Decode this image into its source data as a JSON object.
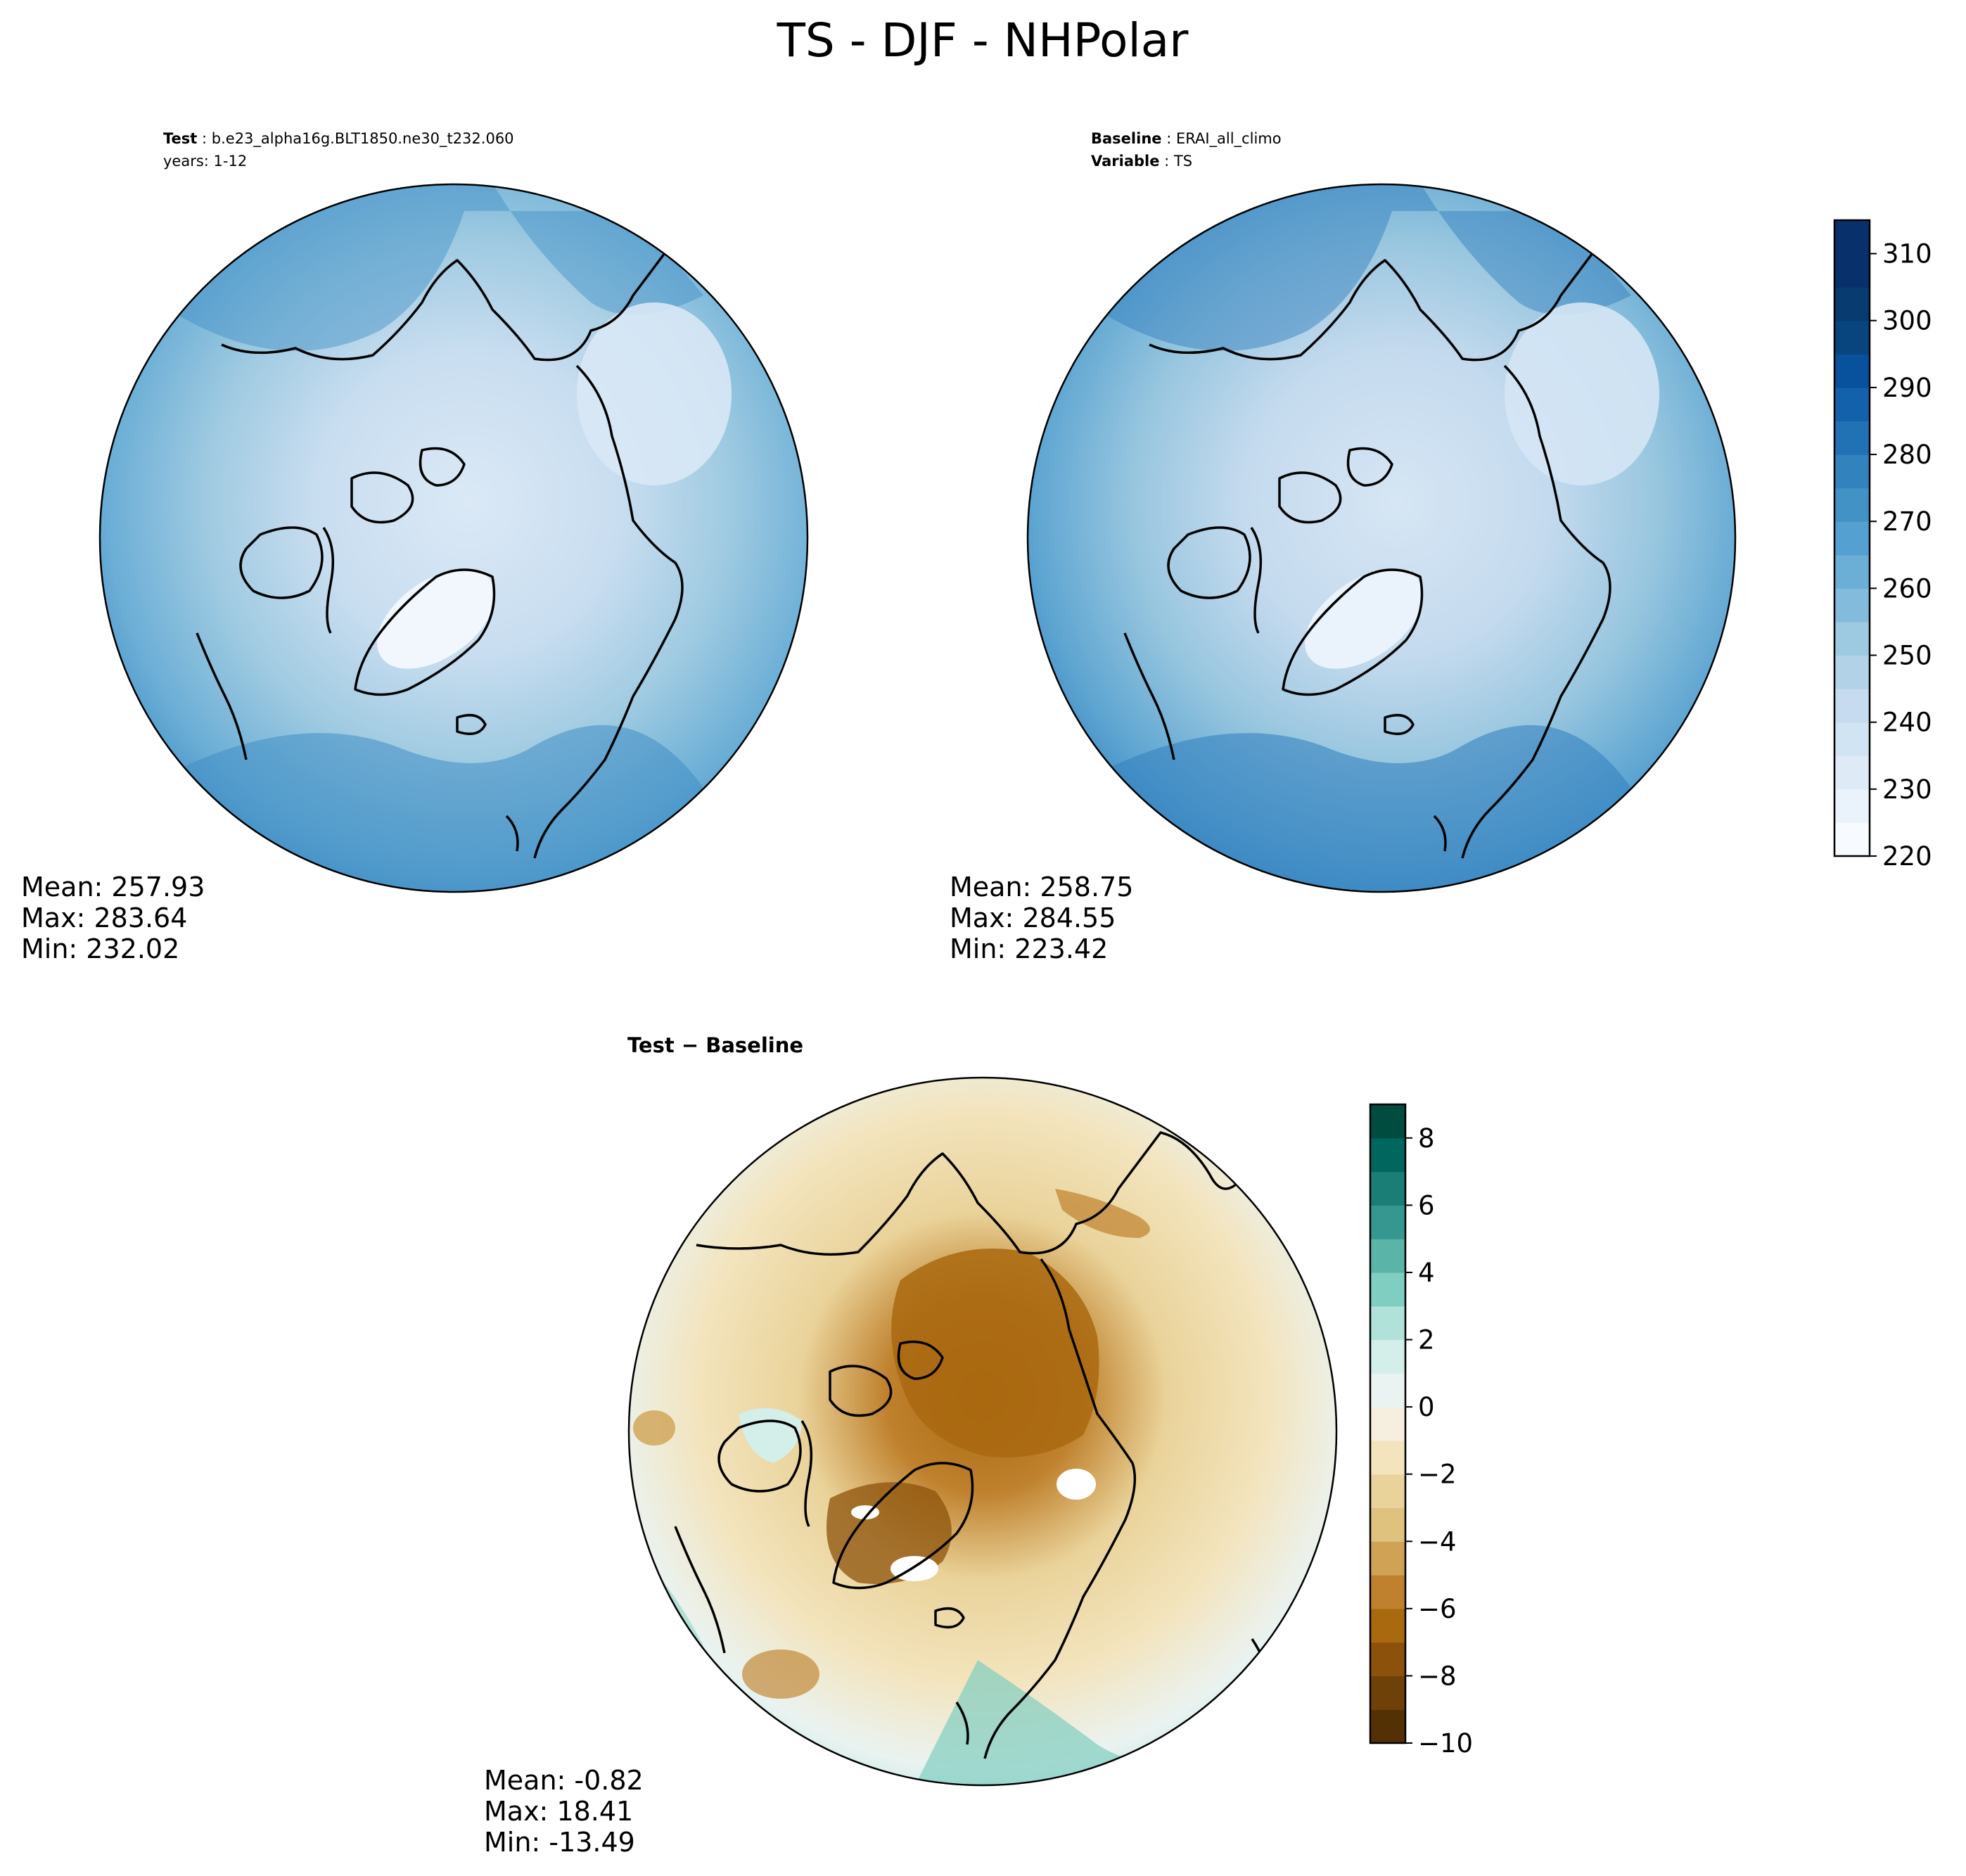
{
  "figure": {
    "title": "TS - DJF - NHPolar"
  },
  "panels": {
    "test": {
      "header_key": "Test",
      "header_value": "b.e23_alpha16g.BLT1850.ne30_t232.060",
      "header_line2": "years: 1-12",
      "stats": {
        "mean": "Mean: 257.93",
        "max": "Max: 283.64",
        "min": "Min: 232.02"
      }
    },
    "baseline": {
      "header_key": "Baseline",
      "header_value": "ERAI_all_climo",
      "header_key2": "Variable",
      "header_value2": "TS",
      "stats": {
        "mean": "Mean: 258.75",
        "max": "Max: 284.55",
        "min": "Min: 223.42"
      }
    },
    "diff": {
      "title": "Test − Baseline",
      "stats": {
        "mean": "Mean: -0.82",
        "max": "Max: 18.41",
        "min": "Min: -13.49"
      }
    }
  },
  "colorbars": {
    "ts": {
      "min": 220,
      "max": 315,
      "step": 5,
      "tick_values": [
        220,
        230,
        240,
        250,
        260,
        270,
        280,
        290,
        300,
        310
      ],
      "tick_labels": [
        "220",
        "230",
        "240",
        "250",
        "260",
        "270",
        "280",
        "290",
        "300",
        "310"
      ],
      "colors": [
        "#f7fbff",
        "#eaf3fb",
        "#deebf7",
        "#d1e4f3",
        "#c6dbef",
        "#b2d2e8",
        "#9ecae1",
        "#82bbdb",
        "#6baed6",
        "#54a0d0",
        "#4292c6",
        "#3182bd",
        "#2171b5",
        "#1361aa",
        "#08519c",
        "#08457f",
        "#083b6f",
        "#08306b",
        "#08306b"
      ]
    },
    "diff": {
      "min": -10,
      "max": 9,
      "step": 1,
      "tick_values": [
        -10,
        -8,
        -6,
        -4,
        -2,
        0,
        2,
        4,
        6,
        8
      ],
      "tick_labels": [
        "−10",
        "−8",
        "−6",
        "−4",
        "−2",
        "0",
        "2",
        "4",
        "6",
        "8"
      ],
      "colors": [
        "#543005",
        "#6e4108",
        "#8c510a",
        "#a9690f",
        "#bf812d",
        "#cfa255",
        "#dfc27d",
        "#ead39a",
        "#f3e4bd",
        "#f6efdf",
        "#eaf3f1",
        "#d4eee9",
        "#b0e2d9",
        "#80cdc1",
        "#5ab4a8",
        "#35978f",
        "#1b7e76",
        "#01665e",
        "#004d40"
      ]
    }
  },
  "map_fields": {
    "ts": [
      {
        "lon": 0,
        "lat": 90,
        "value": 240
      },
      {
        "lon": 90,
        "lat": 65,
        "value": 250
      },
      {
        "lon": 180,
        "lat": 80,
        "value": 244
      },
      {
        "lon": 300,
        "lat": 75,
        "value": 232
      },
      {
        "lon": 30,
        "lat": 50,
        "value": 270
      },
      {
        "lon": 260,
        "lat": 55,
        "value": 255
      },
      {
        "lon": 0,
        "lat": 45,
        "value": 283
      }
    ],
    "diff": [
      {
        "lon": 0,
        "lat": 90,
        "value": -6
      },
      {
        "lon": 300,
        "lat": 72,
        "value": -8
      },
      {
        "lon": 60,
        "lat": 50,
        "value": 3
      },
      {
        "lon": 180,
        "lat": 60,
        "value": 1
      },
      {
        "lon": 250,
        "lat": 70,
        "value": -4
      },
      {
        "lon": 340,
        "lat": 48,
        "value": -2
      }
    ]
  }
}
